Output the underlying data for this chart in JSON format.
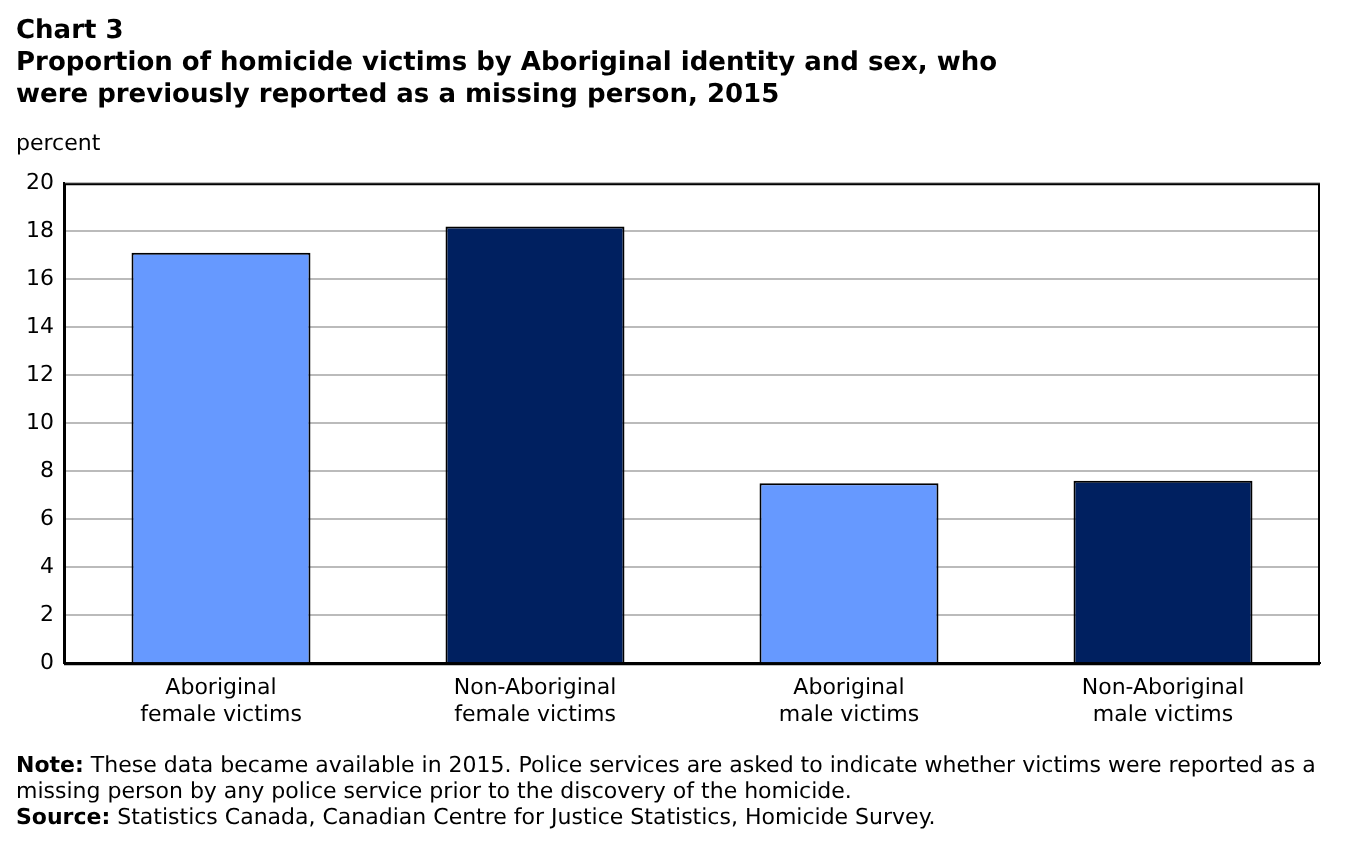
{
  "chart_data": {
    "type": "bar",
    "title": "Chart 3",
    "subtitle": "Proportion of homicide victims by Aboriginal identity and sex, who were previously reported as a missing person, 2015",
    "ylabel": "percent",
    "categories": [
      "Aboriginal female victims",
      "Non-Aboriginal female victims",
      "Aboriginal male victims",
      "Non-Aboriginal male victims"
    ],
    "values": [
      17.1,
      18.2,
      7.5,
      7.6
    ],
    "colors": [
      "#6699ff",
      "#002060",
      "#6699ff",
      "#002060"
    ],
    "ylim": [
      0,
      20
    ],
    "yticks": [
      0,
      2,
      4,
      6,
      8,
      10,
      12,
      14,
      16,
      18,
      20
    ],
    "grid": "y",
    "legend": false,
    "annotations": [
      "Note: These data became available in 2015. Police services are asked to indicate whether victims were reported as a missing person by any police service prior to the discovery of the homicide.",
      "Source: Statistics Canada, Canadian Centre for Justice Statistics, Homicide Survey."
    ]
  }
}
